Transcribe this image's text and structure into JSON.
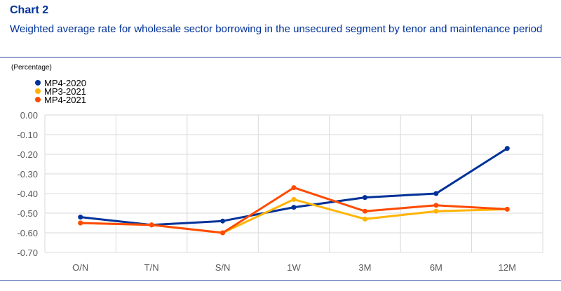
{
  "header": {
    "label": "Chart 2",
    "title": "Weighted average rate for wholesale sector borrowing in the unsecured segment by tenor and maintenance period"
  },
  "units_note": "(Percentage)",
  "chart_data": {
    "type": "line",
    "title": "Weighted average rate for wholesale sector borrowing in the unsecured segment by tenor and maintenance period",
    "xlabel": "",
    "ylabel": "(Percentage)",
    "categories": [
      "O/N",
      "T/N",
      "S/N",
      "1W",
      "3M",
      "6M",
      "12M"
    ],
    "ylim": [
      -0.7,
      0.0
    ],
    "yticks": [
      0.0,
      -0.1,
      -0.2,
      -0.3,
      -0.4,
      -0.5,
      -0.6,
      -0.7
    ],
    "ytick_labels": [
      "0.00",
      "-0.10",
      "-0.20",
      "-0.30",
      "-0.40",
      "-0.50",
      "-0.60",
      "-0.70"
    ],
    "grid": true,
    "legend": "top-left",
    "series": [
      {
        "name": "MP4-2020",
        "color": "#003299",
        "values": [
          -0.52,
          -0.56,
          -0.54,
          -0.47,
          -0.42,
          -0.4,
          -0.17
        ]
      },
      {
        "name": "MP3-2021",
        "color": "#FFB400",
        "values": [
          -0.55,
          -0.56,
          -0.6,
          -0.43,
          -0.53,
          -0.49,
          -0.48
        ]
      },
      {
        "name": "MP4-2021",
        "color": "#FF4B00",
        "values": [
          -0.55,
          -0.56,
          -0.6,
          -0.37,
          -0.49,
          -0.46,
          -0.48
        ]
      }
    ]
  }
}
